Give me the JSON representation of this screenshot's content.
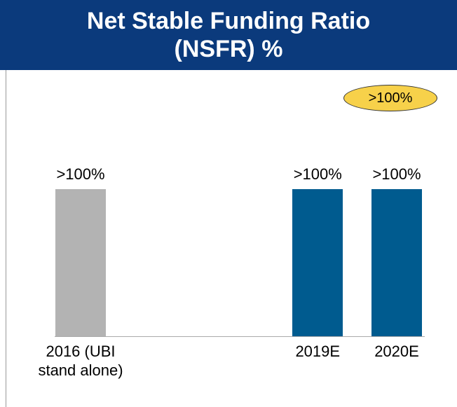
{
  "chart_data": {
    "type": "bar",
    "title": "Net Stable Funding Ratio (NSFR) %",
    "annotation": ">100%",
    "categories": [
      "2016 (UBI stand alone)",
      null,
      null,
      "2019E",
      "2020E"
    ],
    "values": [
      100,
      null,
      null,
      100,
      100
    ],
    "value_labels": [
      ">100%",
      null,
      null,
      ">100%",
      ">100%"
    ],
    "colors": [
      "#b3b3b3",
      null,
      null,
      "#005b8f",
      "#005b8f"
    ]
  }
}
